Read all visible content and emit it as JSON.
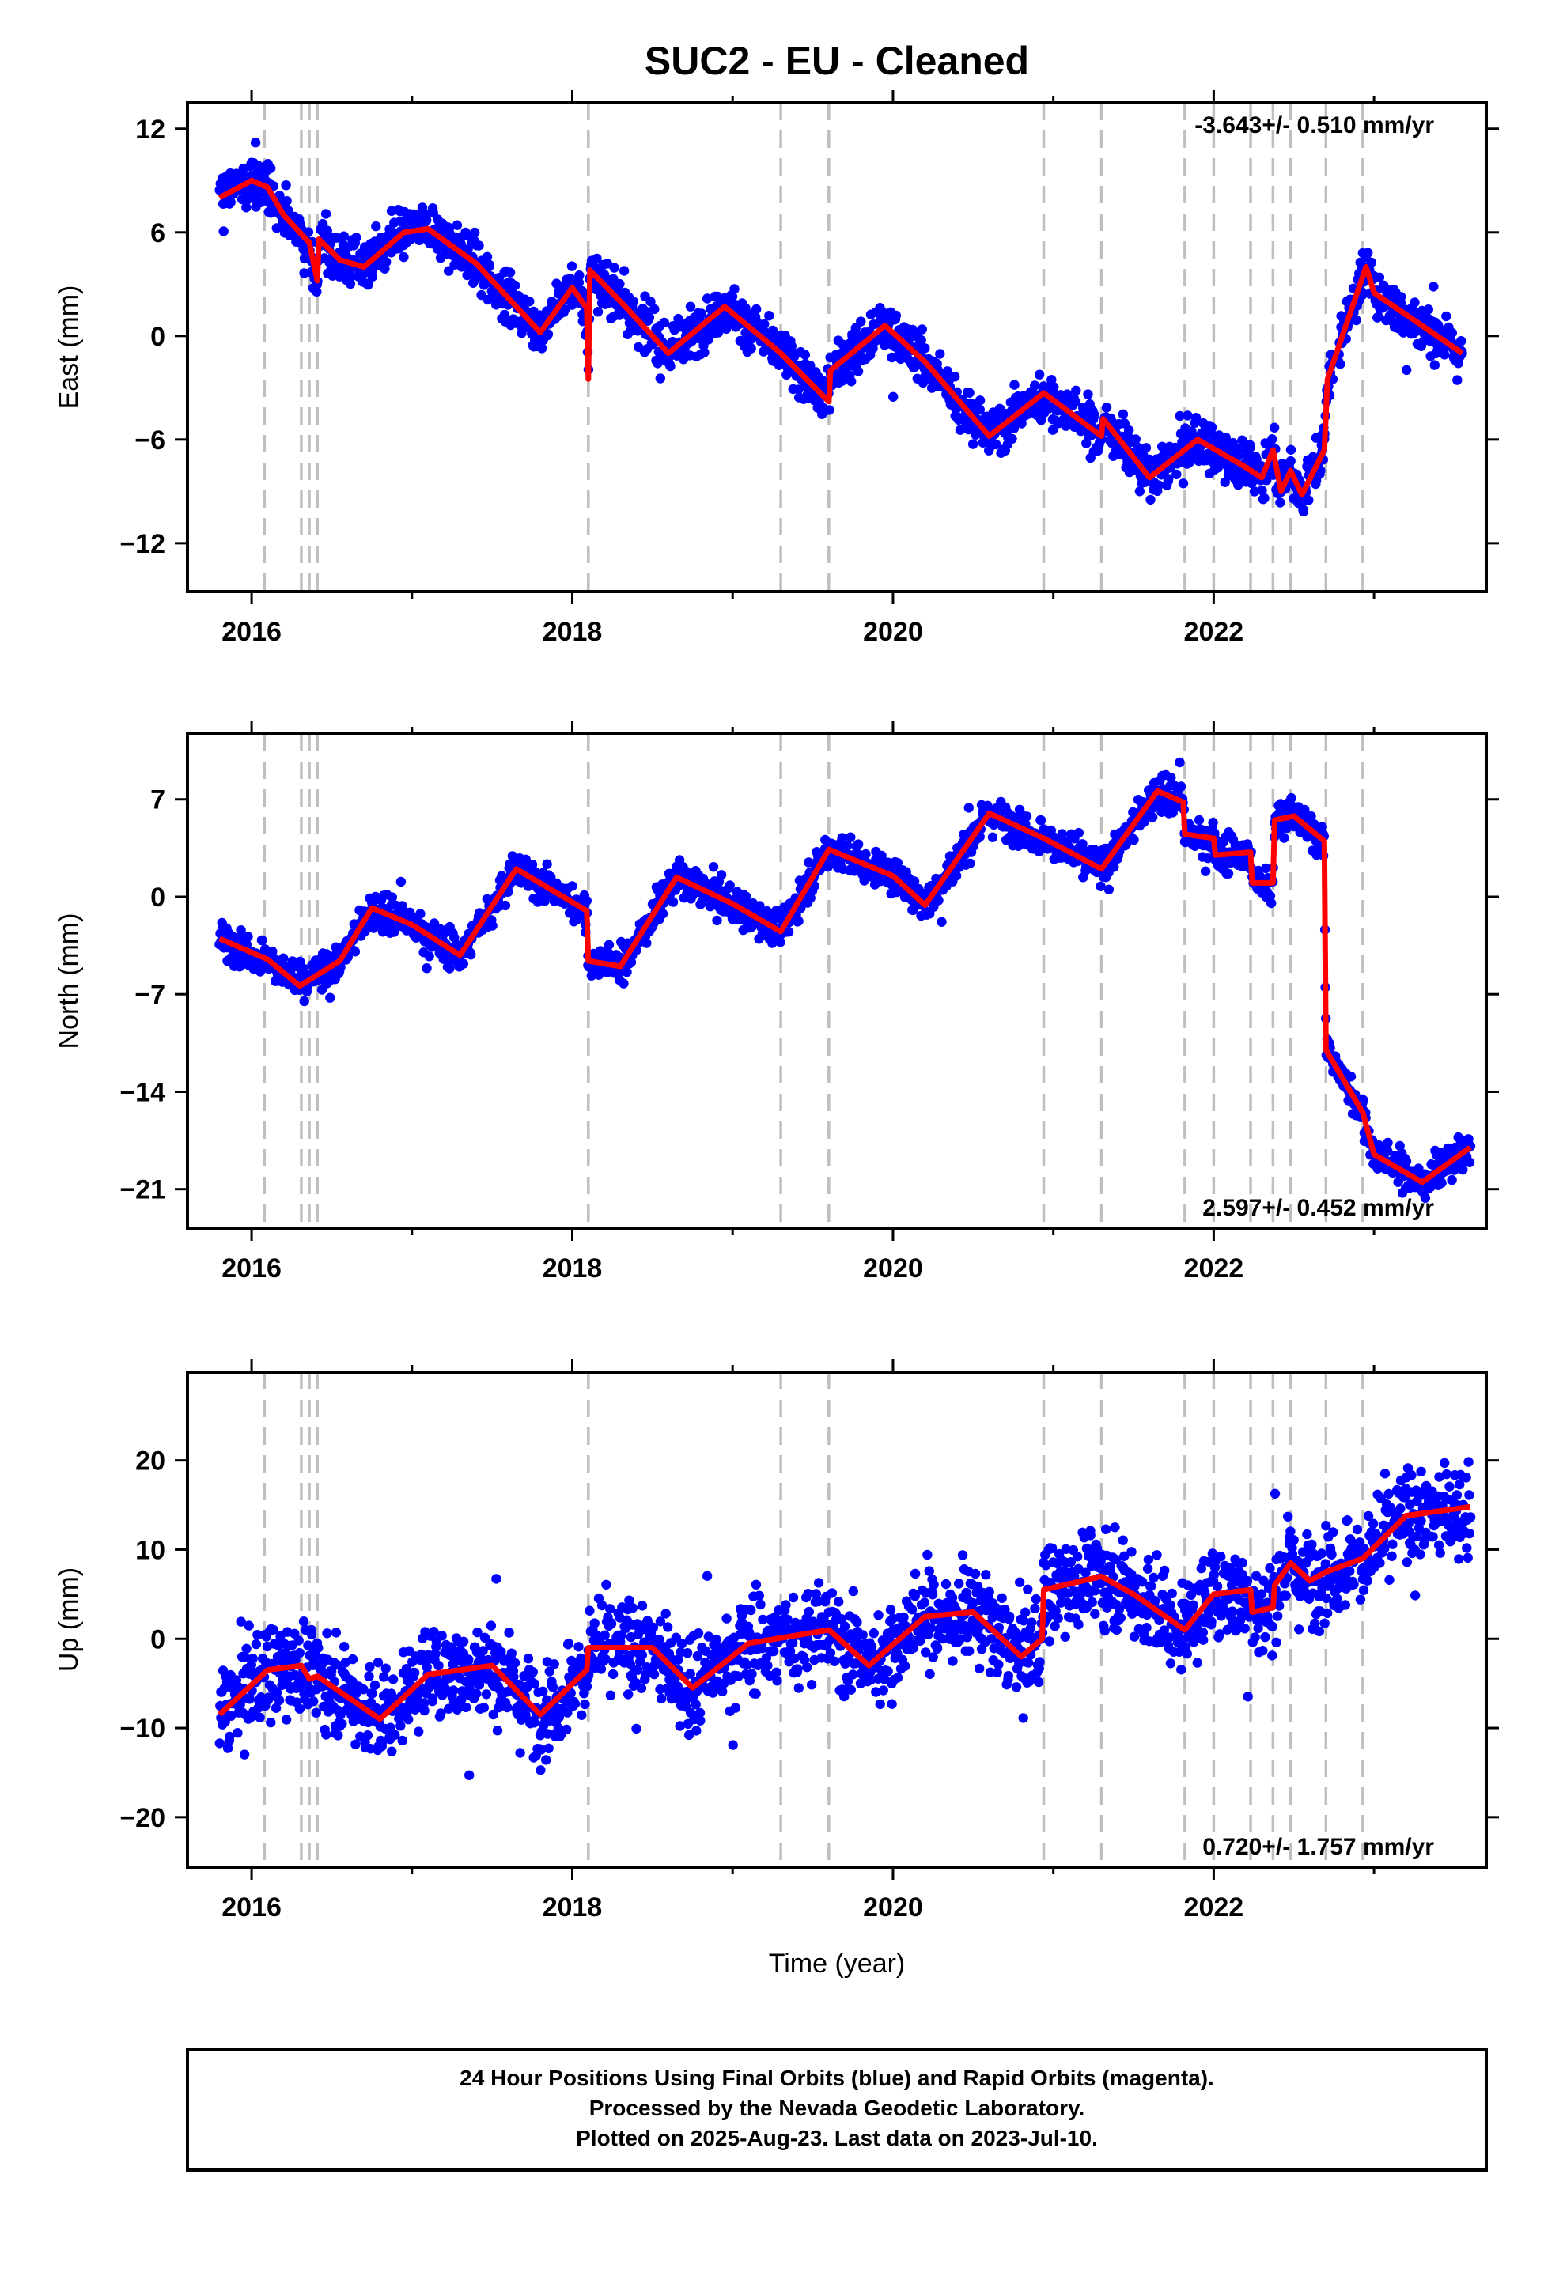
{
  "title": "SUC2  - EU - Cleaned",
  "xlabel": "Time (year)",
  "footer": {
    "lines": [
      "24 Hour Positions Using Final Orbits (blue) and Rapid Orbits (magenta).",
      "Processed by the Nevada Geodetic Laboratory.",
      "Plotted on 2025-Aug-23. Last data on 2023-Jul-10."
    ]
  },
  "colors": {
    "points": "#0000ff",
    "model": "#ff0000",
    "breaks": "#bfbfbf",
    "frame": "#000000"
  },
  "chart_data": [
    {
      "type": "scatter",
      "ylabel": "East (mm)",
      "rate_label": "-3.643+/- 0.510 mm/yr",
      "xlim": [
        2015.6,
        2023.7
      ],
      "ylim": [
        -14.8,
        13.5
      ],
      "xticks": [
        2016,
        2018,
        2020,
        2022
      ],
      "yticks": [
        12,
        6,
        0,
        -6,
        -12
      ],
      "ytick_labels": [
        "12",
        "6",
        "0",
        "−6",
        "−12"
      ],
      "break_years": [
        2016.08,
        2016.31,
        2016.36,
        2016.41,
        2018.1,
        2019.3,
        2019.6,
        2020.94,
        2021.3,
        2021.82,
        2022.0,
        2022.23,
        2022.37,
        2022.48,
        2022.7,
        2022.93
      ],
      "scatter_noise": 1.2,
      "model": [
        [
          2015.8,
          8.0
        ],
        [
          2016.0,
          9.0
        ],
        [
          2016.1,
          8.6
        ],
        [
          2016.2,
          7.0
        ],
        [
          2016.3,
          6.0
        ],
        [
          2016.36,
          5.4
        ],
        [
          2016.41,
          3.2
        ],
        [
          2016.42,
          5.6
        ],
        [
          2016.55,
          4.4
        ],
        [
          2016.7,
          4.0
        ],
        [
          2016.95,
          6.0
        ],
        [
          2017.1,
          6.2
        ],
        [
          2017.4,
          4.2
        ],
        [
          2017.8,
          0.2
        ],
        [
          2018.0,
          2.8
        ],
        [
          2018.09,
          1.6
        ],
        [
          2018.1,
          -2.5
        ],
        [
          2018.11,
          3.8
        ],
        [
          2018.3,
          2.0
        ],
        [
          2018.6,
          -1.0
        ],
        [
          2018.95,
          1.7
        ],
        [
          2019.3,
          -1.0
        ],
        [
          2019.6,
          -3.8
        ],
        [
          2019.61,
          -2.0
        ],
        [
          2019.95,
          0.6
        ],
        [
          2020.2,
          -1.5
        ],
        [
          2020.6,
          -5.8
        ],
        [
          2020.94,
          -3.3
        ],
        [
          2021.3,
          -5.8
        ],
        [
          2021.31,
          -4.8
        ],
        [
          2021.6,
          -8.2
        ],
        [
          2021.9,
          -6.0
        ],
        [
          2022.2,
          -7.6
        ],
        [
          2022.3,
          -8.2
        ],
        [
          2022.37,
          -6.6
        ],
        [
          2022.42,
          -9.0
        ],
        [
          2022.48,
          -7.8
        ],
        [
          2022.55,
          -9.2
        ],
        [
          2022.69,
          -6.6
        ],
        [
          2022.71,
          -2.5
        ],
        [
          2022.95,
          4.0
        ],
        [
          2023.0,
          2.5
        ],
        [
          2023.55,
          -1.0
        ]
      ]
    },
    {
      "type": "scatter",
      "ylabel": "North (mm)",
      "rate_label": "2.597+/- 0.452 mm/yr",
      "xlim": [
        2015.6,
        2023.7
      ],
      "ylim": [
        -23.8,
        11.7
      ],
      "xticks": [
        2016,
        2018,
        2020,
        2022
      ],
      "yticks": [
        7,
        0,
        -7,
        -14,
        -21
      ],
      "ytick_labels": [
        "7",
        "0",
        "−7",
        "−14",
        "−21"
      ],
      "break_years": [
        2016.08,
        2016.31,
        2016.36,
        2016.41,
        2018.1,
        2019.3,
        2019.6,
        2020.94,
        2021.3,
        2021.82,
        2022.0,
        2022.23,
        2022.37,
        2022.48,
        2022.7,
        2022.93
      ],
      "scatter_noise": 1.1,
      "model": [
        [
          2015.8,
          -3.0
        ],
        [
          2016.1,
          -4.5
        ],
        [
          2016.3,
          -6.4
        ],
        [
          2016.55,
          -4.6
        ],
        [
          2016.75,
          -0.8
        ],
        [
          2017.0,
          -2.0
        ],
        [
          2017.3,
          -4.2
        ],
        [
          2017.65,
          2.0
        ],
        [
          2018.09,
          -1.0
        ],
        [
          2018.1,
          -4.6
        ],
        [
          2018.3,
          -5.0
        ],
        [
          2018.65,
          1.4
        ],
        [
          2019.0,
          -0.5
        ],
        [
          2019.3,
          -2.5
        ],
        [
          2019.6,
          3.4
        ],
        [
          2020.0,
          1.5
        ],
        [
          2020.2,
          -0.6
        ],
        [
          2020.6,
          6.0
        ],
        [
          2020.94,
          4.2
        ],
        [
          2021.3,
          2.0
        ],
        [
          2021.65,
          7.6
        ],
        [
          2021.81,
          6.8
        ],
        [
          2021.82,
          4.5
        ],
        [
          2022.0,
          4.2
        ],
        [
          2022.01,
          3.0
        ],
        [
          2022.23,
          3.2
        ],
        [
          2022.24,
          1.0
        ],
        [
          2022.37,
          1.0
        ],
        [
          2022.38,
          5.5
        ],
        [
          2022.5,
          5.8
        ],
        [
          2022.69,
          4.0
        ],
        [
          2022.7,
          -11.0
        ],
        [
          2022.93,
          -15.5
        ],
        [
          2023.0,
          -18.5
        ],
        [
          2023.3,
          -20.5
        ],
        [
          2023.6,
          -18.0
        ]
      ]
    },
    {
      "type": "scatter",
      "ylabel": "Up (mm)",
      "rate_label": "0.720+/- 1.757 mm/yr",
      "xlim": [
        2015.6,
        2023.7
      ],
      "ylim": [
        -25.6,
        29.9
      ],
      "xticks": [
        2016,
        2018,
        2020,
        2022
      ],
      "yticks": [
        20,
        10,
        0,
        -10,
        -20
      ],
      "ytick_labels": [
        "20",
        "10",
        "0",
        "−10",
        "−20"
      ],
      "break_years": [
        2016.08,
        2016.31,
        2016.36,
        2016.41,
        2018.1,
        2019.3,
        2019.6,
        2020.94,
        2021.3,
        2021.82,
        2022.0,
        2022.23,
        2022.37,
        2022.48,
        2022.7,
        2022.93
      ],
      "scatter_noise": 4.5,
      "model": [
        [
          2015.8,
          -8.5
        ],
        [
          2016.1,
          -3.5
        ],
        [
          2016.31,
          -3.0
        ],
        [
          2016.36,
          -4.5
        ],
        [
          2016.41,
          -4.2
        ],
        [
          2016.8,
          -9.0
        ],
        [
          2017.1,
          -4.0
        ],
        [
          2017.5,
          -3.0
        ],
        [
          2017.8,
          -8.5
        ],
        [
          2018.09,
          -3.5
        ],
        [
          2018.1,
          -1.0
        ],
        [
          2018.5,
          -1.0
        ],
        [
          2018.75,
          -5.5
        ],
        [
          2019.1,
          -0.5
        ],
        [
          2019.6,
          1.0
        ],
        [
          2019.85,
          -3.0
        ],
        [
          2020.2,
          2.5
        ],
        [
          2020.5,
          3.0
        ],
        [
          2020.8,
          -2.0
        ],
        [
          2020.93,
          0.0
        ],
        [
          2020.94,
          5.5
        ],
        [
          2021.3,
          7.0
        ],
        [
          2021.5,
          5.0
        ],
        [
          2021.82,
          1.0
        ],
        [
          2022.0,
          5.0
        ],
        [
          2022.23,
          5.5
        ],
        [
          2022.24,
          3.0
        ],
        [
          2022.37,
          3.5
        ],
        [
          2022.38,
          6.0
        ],
        [
          2022.48,
          8.5
        ],
        [
          2022.6,
          6.5
        ],
        [
          2022.7,
          7.5
        ],
        [
          2022.93,
          9.0
        ],
        [
          2023.2,
          13.8
        ],
        [
          2023.6,
          14.8
        ]
      ]
    }
  ]
}
